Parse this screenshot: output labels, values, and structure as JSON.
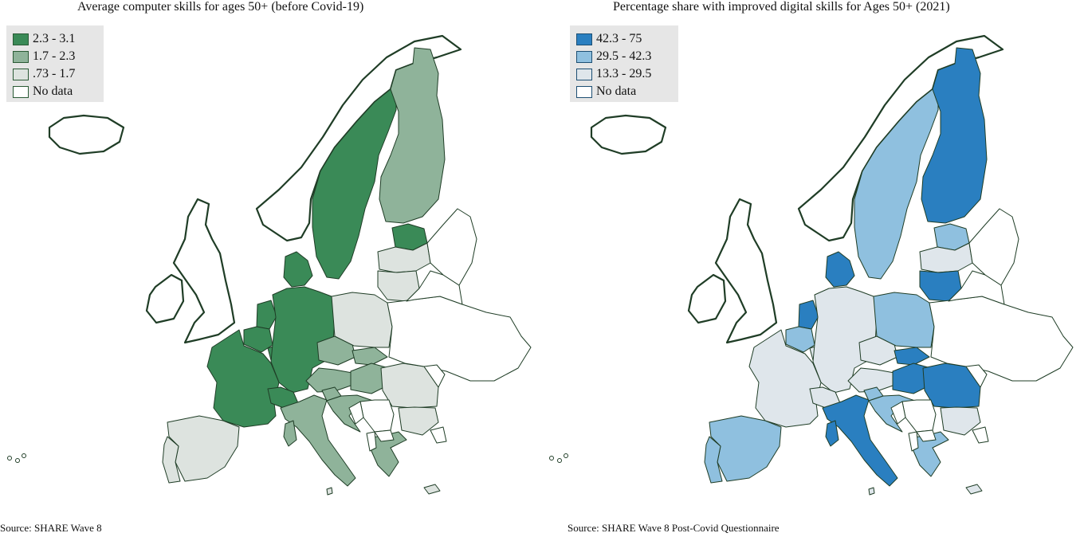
{
  "maps": [
    {
      "title": "Average computer skills for ages 50+ (before Covid-19)",
      "legend": [
        {
          "label": "2.3 - 3.1",
          "color": "#3a8a57"
        },
        {
          "label": "1.7 - 2.3",
          "color": "#8fb39a"
        },
        {
          "label": ".73 - 1.7",
          "color": "#dde3df"
        },
        {
          "label": "No data",
          "color": "#ffffff"
        }
      ],
      "source": "Source: SHARE Wave 8",
      "regions": {
        "sweden": 0,
        "finland": 1,
        "estonia": 0,
        "latvia": 2,
        "lithuania": 2,
        "denmark": 0,
        "netherlands": 0,
        "belgium": 0,
        "luxembourg": 0,
        "germany": 0,
        "france": 0,
        "switzerland": 0,
        "austria": 1,
        "czechia": 1,
        "slovakia": 1,
        "hungary": 1,
        "slovenia": 1,
        "croatia": 1,
        "italy": 1,
        "sardinia": 1,
        "poland": 2,
        "romania": 2,
        "bulgaria": 2,
        "greece": 1,
        "spain": 2,
        "portugal": 2,
        "cyprus": 2,
        "malta": 2
      }
    },
    {
      "title": "Percentage share with improved digital skills for Ages 50+ (2021)",
      "legend": [
        {
          "label": "42.3 - 75",
          "color": "#2a7fc0"
        },
        {
          "label": "29.5 - 42.3",
          "color": "#8fc0df"
        },
        {
          "label": "13.3 - 29.5",
          "color": "#dfe6eb"
        },
        {
          "label": "No data",
          "color": "#ffffff"
        }
      ],
      "source": "Source: SHARE Wave 8 Post-Covid Questionnaire",
      "regions": {
        "sweden": 1,
        "finland": 0,
        "estonia": 1,
        "latvia": 2,
        "lithuania": 0,
        "denmark": 0,
        "netherlands": 0,
        "belgium": 1,
        "luxembourg": 2,
        "germany": 2,
        "france": 2,
        "switzerland": 2,
        "austria": 2,
        "czechia": 2,
        "slovakia": 0,
        "hungary": 0,
        "slovenia": 1,
        "croatia": 1,
        "italy": 0,
        "sardinia": 0,
        "poland": 1,
        "romania": 0,
        "bulgaria": 2,
        "greece": 1,
        "spain": 1,
        "portugal": 1,
        "cyprus": 2,
        "malta": 2
      }
    }
  ]
}
